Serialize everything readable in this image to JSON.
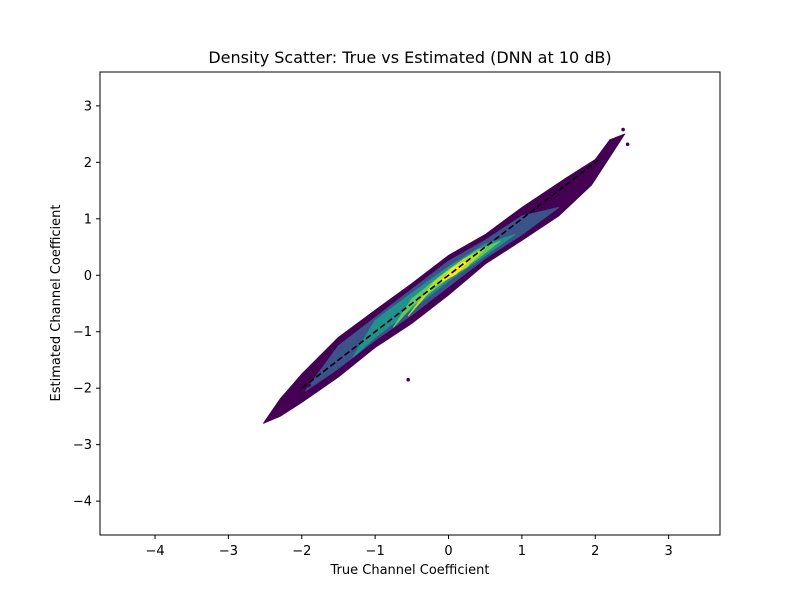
{
  "chart_data": {
    "type": "heatmap",
    "title": "Density Scatter: True vs Estimated (DNN at 10 dB)",
    "xlabel": "True Channel Coefficient",
    "ylabel": "Estimated Channel Coefficient",
    "xlim": [
      -4.75,
      3.7
    ],
    "ylim": [
      -4.6,
      3.6
    ],
    "xticks": [
      -4,
      -3,
      -2,
      -1,
      0,
      1,
      2,
      3
    ],
    "yticks": [
      -4,
      -3,
      -2,
      -1,
      0,
      1,
      2,
      3
    ],
    "xtick_labels": [
      "−4",
      "−3",
      "−2",
      "−1",
      "0",
      "1",
      "2",
      "3"
    ],
    "ytick_labels": [
      "−4",
      "−3",
      "−2",
      "−1",
      "0",
      "1",
      "2",
      "3"
    ],
    "grid": false,
    "colormap": "viridis",
    "density_contours": [
      {
        "level": 0.05,
        "color": "#440154",
        "points": [
          [
            -2.52,
            -2.62
          ],
          [
            -2.3,
            -2.5
          ],
          [
            -2.0,
            -2.25
          ],
          [
            -1.5,
            -1.8
          ],
          [
            -1.0,
            -1.28
          ],
          [
            -0.5,
            -0.85
          ],
          [
            0.0,
            -0.35
          ],
          [
            0.5,
            0.2
          ],
          [
            1.0,
            0.62
          ],
          [
            1.5,
            1.05
          ],
          [
            1.95,
            1.6
          ],
          [
            2.3,
            2.3
          ],
          [
            2.4,
            2.5
          ],
          [
            2.2,
            2.4
          ],
          [
            2.0,
            2.05
          ],
          [
            1.6,
            1.72
          ],
          [
            1.0,
            1.2
          ],
          [
            0.5,
            0.72
          ],
          [
            0.0,
            0.35
          ],
          [
            -0.5,
            -0.15
          ],
          [
            -1.0,
            -0.62
          ],
          [
            -1.5,
            -1.1
          ],
          [
            -2.0,
            -1.75
          ],
          [
            -2.3,
            -2.2
          ],
          [
            -2.52,
            -2.62
          ]
        ]
      },
      {
        "level": 0.2,
        "color": "#3b528b",
        "points": [
          [
            -1.95,
            -2.05
          ],
          [
            -1.5,
            -1.65
          ],
          [
            -1.0,
            -1.15
          ],
          [
            -0.5,
            -0.7
          ],
          [
            0.0,
            -0.2
          ],
          [
            0.5,
            0.3
          ],
          [
            1.0,
            0.72
          ],
          [
            1.5,
            1.2
          ],
          [
            1.0,
            1.05
          ],
          [
            0.5,
            0.62
          ],
          [
            0.0,
            0.25
          ],
          [
            -0.5,
            -0.25
          ],
          [
            -1.0,
            -0.75
          ],
          [
            -1.5,
            -1.25
          ],
          [
            -1.95,
            -2.05
          ]
        ]
      },
      {
        "level": 0.4,
        "color": "#21918c",
        "points": [
          [
            -1.3,
            -1.45
          ],
          [
            -1.0,
            -1.1
          ],
          [
            -0.5,
            -0.6
          ],
          [
            0.0,
            -0.1
          ],
          [
            0.5,
            0.35
          ],
          [
            0.9,
            0.72
          ],
          [
            0.5,
            0.55
          ],
          [
            0.0,
            0.15
          ],
          [
            -0.5,
            -0.32
          ],
          [
            -1.0,
            -0.8
          ],
          [
            -1.3,
            -1.45
          ]
        ]
      },
      {
        "level": 0.6,
        "color": "#5ec962",
        "points": [
          [
            -0.75,
            -0.92
          ],
          [
            -0.5,
            -0.55
          ],
          [
            0.0,
            -0.05
          ],
          [
            0.4,
            0.3
          ],
          [
            0.7,
            0.6
          ],
          [
            0.4,
            0.45
          ],
          [
            0.0,
            0.1
          ],
          [
            -0.5,
            -0.42
          ],
          [
            -0.75,
            -0.92
          ]
        ]
      },
      {
        "level": 0.8,
        "color": "#b5de2b",
        "points": [
          [
            -0.55,
            -0.72
          ],
          [
            -0.2,
            -0.2
          ],
          [
            0.25,
            0.15
          ],
          [
            0.5,
            0.48
          ],
          [
            0.2,
            0.28
          ],
          [
            -0.2,
            -0.12
          ],
          [
            -0.55,
            -0.72
          ]
        ]
      },
      {
        "level": 1.0,
        "color": "#fde725",
        "points": [
          [
            -0.1,
            -0.12
          ],
          [
            0.1,
            0.02
          ],
          [
            0.3,
            0.3
          ],
          [
            0.05,
            0.12
          ],
          [
            -0.1,
            -0.12
          ]
        ]
      }
    ],
    "outlier_points": [
      [
        2.38,
        2.58
      ],
      [
        2.44,
        2.32
      ],
      [
        2.25,
        2.28
      ],
      [
        -0.55,
        -1.85
      ],
      [
        -1.9,
        -1.95
      ]
    ],
    "reference_line": {
      "label": "",
      "style": "dashed",
      "color": "#000000",
      "points": [
        [
          -2.0,
          -2.0
        ],
        [
          2.05,
          2.05
        ]
      ]
    }
  }
}
